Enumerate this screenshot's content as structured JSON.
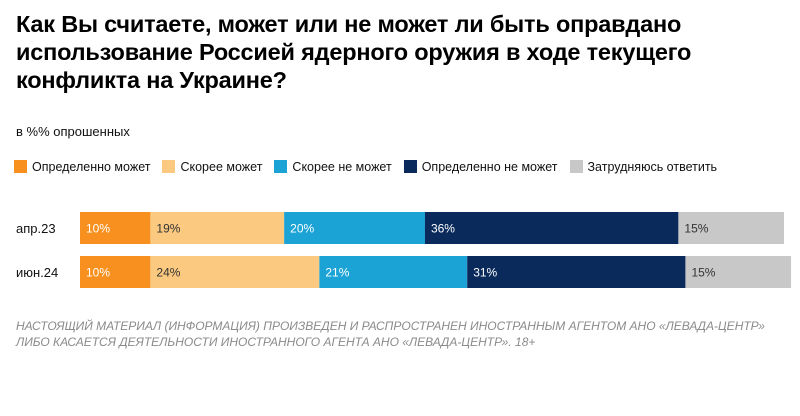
{
  "title": "Как Вы считаете, может или не может ли быть оправдано использование Россией ядерного оружия в ходе текущего конфликта на Украине?",
  "subtitle": "в %% опрошенных",
  "disclaimer": "НАСТОЯЩИЙ МАТЕРИАЛ (ИНФОРМАЦИЯ) ПРОИЗВЕДЕН И РАСПРОСТРАНЕН ИНОСТРАННЫМ АГЕНТОМ АНО «ЛЕВАДА-ЦЕНТР» ЛИБО КАСАЕТСЯ ДЕЯТЕЛЬНОСТИ ИНОСТРАННОГО АГЕНТА АНО «ЛЕВАДА-ЦЕНТР». 18+",
  "chart_data": {
    "type": "bar",
    "stacked": true,
    "orientation": "horizontal",
    "categories": [
      "апр.23",
      "июн.24"
    ],
    "series": [
      {
        "name": "Определенно может",
        "color": "#f7901e",
        "label_color": "#ffffff",
        "values": [
          10,
          10
        ]
      },
      {
        "name": "Скорее может",
        "color": "#fbc97f",
        "label_color": "#333333",
        "values": [
          19,
          24
        ]
      },
      {
        "name": "Скорее не может",
        "color": "#1aa3d4",
        "label_color": "#ffffff",
        "values": [
          20,
          21
        ]
      },
      {
        "name": "Определенно не может",
        "color": "#0b2a5c",
        "label_color": "#ffffff",
        "values": [
          36,
          31
        ]
      },
      {
        "name": "Затрудняюсь ответить",
        "color": "#c8c8c8",
        "label_color": "#333333",
        "values": [
          15,
          15
        ]
      }
    ],
    "value_suffix": "%",
    "xlim": [
      0,
      100
    ],
    "legend_position": "top",
    "grid": false
  }
}
